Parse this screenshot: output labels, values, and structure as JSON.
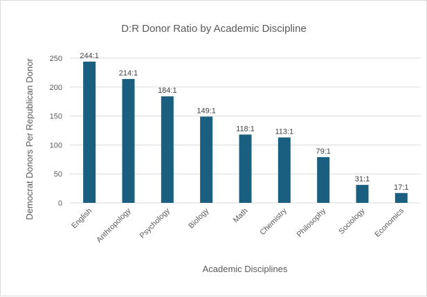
{
  "chart_data": {
    "type": "bar",
    "title": "D:R Donor Ratio by Academic Discipline",
    "xlabel": "Academic Disciplines",
    "ylabel": "Democrat Donors Per Republican Donor",
    "categories": [
      "English",
      "Anthropology",
      "Psychology",
      "Biology",
      "Math",
      "Chemistry",
      "Philosophy",
      "Sociology",
      "Economics"
    ],
    "values": [
      244,
      214,
      184,
      149,
      118,
      113,
      79,
      31,
      17
    ],
    "data_labels": [
      "244:1",
      "214:1",
      "184:1",
      "149:1",
      "118:1",
      "113:1",
      "79:1",
      "31:1",
      "17:1"
    ],
    "ylim": [
      0,
      250
    ],
    "yticks": [
      0,
      50,
      100,
      150,
      200,
      250
    ],
    "grid": true,
    "legend": "none",
    "bar_color": "#1a5f7f",
    "grid_color": "#d9d9d9"
  }
}
